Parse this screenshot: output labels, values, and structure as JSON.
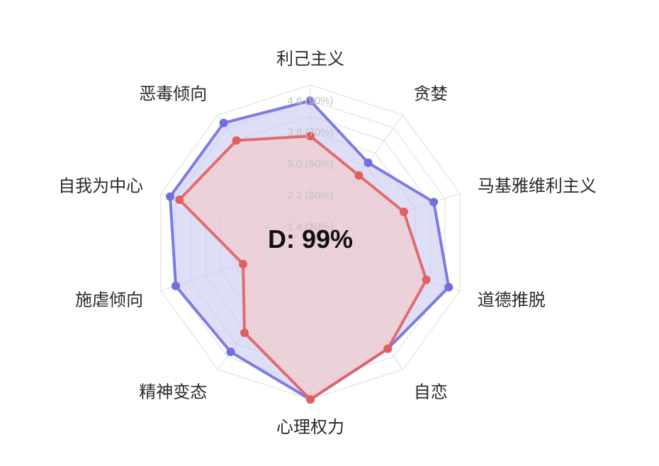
{
  "chart_data": {
    "type": "radar",
    "center_label": "D: 99%",
    "axes": [
      "利己主义",
      "贪婪",
      "马基雅维利主义",
      "道德推脱",
      "自恋",
      "心理权力",
      "精神变态",
      "施虐倾向",
      "自我为中心",
      "恶毒倾向"
    ],
    "ticks": [
      {
        "value": 1.4,
        "label": "1.4 (10%)"
      },
      {
        "value": 2.2,
        "label": "2.2 (30%)"
      },
      {
        "value": 3.0,
        "label": "3.0 (50%)"
      },
      {
        "value": 3.8,
        "label": "3.8 (70%)"
      },
      {
        "value": 4.6,
        "label": "4.6 (90%)"
      }
    ],
    "range": [
      1,
      5
    ],
    "series": [
      {
        "color": "#6f6fe0",
        "fill": "#c8c8f2",
        "values": [
          4.6,
          3.5,
          4.3,
          4.7,
          4.35,
          5.0,
          4.45,
          4.6,
          4.75,
          4.75
        ]
      },
      {
        "color": "#e06060",
        "fill": "#f5c6c6",
        "values": [
          3.7,
          3.1,
          3.5,
          4.1,
          4.35,
          5.0,
          3.85,
          2.8,
          4.5,
          4.2
        ]
      }
    ]
  }
}
